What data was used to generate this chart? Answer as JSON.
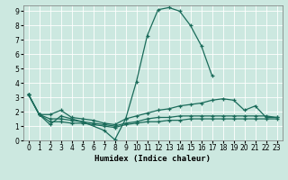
{
  "xlabel": "Humidex (Indice chaleur)",
  "bg_color": "#cce8e0",
  "grid_color": "#ffffff",
  "line_color": "#1a6b5a",
  "xlim": [
    -0.5,
    23.5
  ],
  "ylim": [
    0,
    9.4
  ],
  "xticks": [
    0,
    1,
    2,
    3,
    4,
    5,
    6,
    7,
    8,
    9,
    10,
    11,
    12,
    13,
    14,
    15,
    16,
    17,
    18,
    19,
    20,
    21,
    22,
    23
  ],
  "yticks": [
    0,
    1,
    2,
    3,
    4,
    5,
    6,
    7,
    8,
    9
  ],
  "line1_x": [
    0,
    1,
    2,
    3,
    4,
    5,
    7,
    8,
    9,
    10,
    11,
    12,
    13,
    14,
    15,
    16,
    17
  ],
  "line1_y": [
    3.2,
    1.8,
    1.1,
    1.7,
    1.5,
    1.3,
    0.7,
    0.05,
    1.5,
    4.1,
    7.3,
    9.1,
    9.25,
    9.0,
    8.0,
    6.6,
    4.5
  ],
  "line2_x": [
    0,
    1,
    2,
    3,
    4,
    5,
    6,
    7,
    8,
    9,
    10,
    11,
    12,
    13,
    14,
    15,
    16,
    17,
    18,
    19,
    20,
    21,
    22,
    23
  ],
  "line2_y": [
    3.2,
    1.8,
    1.8,
    2.1,
    1.6,
    1.5,
    1.4,
    1.2,
    1.1,
    1.5,
    1.7,
    1.9,
    2.1,
    2.2,
    2.4,
    2.5,
    2.6,
    2.8,
    2.9,
    2.8,
    2.1,
    2.4,
    1.6,
    1.6
  ],
  "line3_x": [
    0,
    1,
    2,
    3,
    4,
    5,
    6,
    7,
    8,
    9,
    10,
    11,
    12,
    13,
    14,
    15,
    16,
    17,
    18,
    19,
    20,
    21,
    22,
    23
  ],
  "line3_y": [
    3.2,
    1.8,
    1.5,
    1.5,
    1.4,
    1.3,
    1.2,
    1.1,
    1.0,
    1.2,
    1.3,
    1.5,
    1.6,
    1.6,
    1.7,
    1.7,
    1.7,
    1.7,
    1.7,
    1.7,
    1.7,
    1.7,
    1.7,
    1.6
  ],
  "line4_x": [
    0,
    1,
    2,
    3,
    4,
    5,
    6,
    7,
    8,
    9,
    10,
    11,
    12,
    13,
    14,
    15,
    16,
    17,
    18,
    19,
    20,
    21,
    22,
    23
  ],
  "line4_y": [
    3.2,
    1.8,
    1.3,
    1.3,
    1.2,
    1.2,
    1.1,
    1.0,
    0.9,
    1.1,
    1.2,
    1.3,
    1.3,
    1.4,
    1.4,
    1.5,
    1.5,
    1.5,
    1.5,
    1.5,
    1.5,
    1.5,
    1.5,
    1.5
  ]
}
